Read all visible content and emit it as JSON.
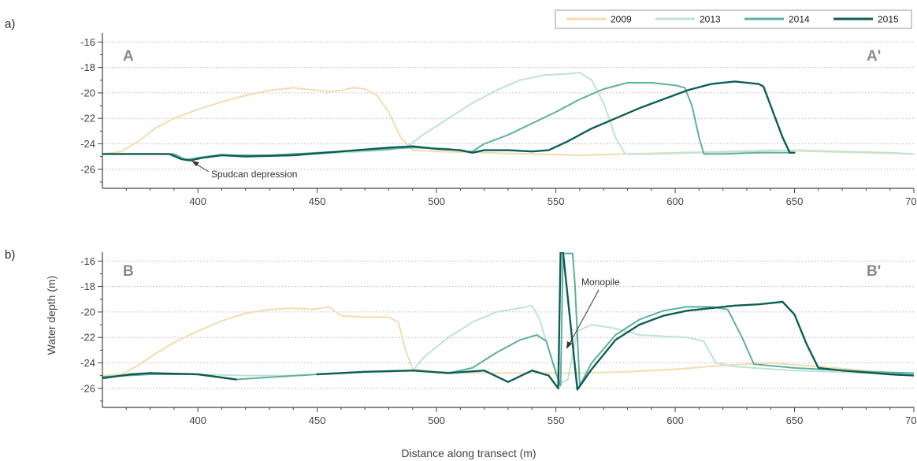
{
  "figure": {
    "ylabel": "Water depth (m)",
    "xlabel": "Distance along transect (m)"
  },
  "legend": [
    {
      "name": "2009",
      "color": "#f3dcb0"
    },
    {
      "name": "2013",
      "color": "#bfe3d6"
    },
    {
      "name": "2014",
      "color": "#5fafa2"
    },
    {
      "name": "2015",
      "color": "#0d5f56"
    }
  ],
  "chart_data": [
    {
      "type": "line",
      "panel_label": "a)",
      "start_label": "A",
      "end_label": "A'",
      "xlim": [
        360,
        700
      ],
      "ylim": [
        -27.5,
        -15.3
      ],
      "xticks": [
        400,
        450,
        500,
        550,
        600,
        650,
        700
      ],
      "yticks": [
        -16,
        -18,
        -20,
        -22,
        -24,
        -26
      ],
      "grid": "horizontal dotted",
      "legend_position": "top-right",
      "annotations": [
        {
          "text": "Spudcan depression",
          "x": 395,
          "y": -25.3
        }
      ],
      "series": [
        {
          "name": "2009",
          "color": "#f3dcb0",
          "points": [
            [
              360,
              -24.8
            ],
            [
              368,
              -24.6
            ],
            [
              375,
              -23.8
            ],
            [
              382,
              -22.8
            ],
            [
              390,
              -22.0
            ],
            [
              400,
              -21.3
            ],
            [
              410,
              -20.7
            ],
            [
              420,
              -20.2
            ],
            [
              430,
              -19.8
            ],
            [
              440,
              -19.6
            ],
            [
              450,
              -19.8
            ],
            [
              455,
              -19.9
            ],
            [
              460,
              -19.8
            ],
            [
              465,
              -19.6
            ],
            [
              470,
              -19.7
            ],
            [
              475,
              -20.2
            ],
            [
              480,
              -21.5
            ],
            [
              485,
              -23.5
            ],
            [
              490,
              -24.5
            ],
            [
              500,
              -24.6
            ],
            [
              520,
              -24.7
            ],
            [
              540,
              -24.8
            ],
            [
              560,
              -24.9
            ],
            [
              580,
              -24.8
            ],
            [
              600,
              -24.7
            ],
            [
              620,
              -24.6
            ],
            [
              640,
              -24.5
            ],
            [
              660,
              -24.6
            ],
            [
              680,
              -24.7
            ],
            [
              700,
              -24.8
            ]
          ]
        },
        {
          "name": "2013",
          "color": "#bfe3d6",
          "points": [
            [
              360,
              -24.8
            ],
            [
              390,
              -24.8
            ],
            [
              395,
              -25.2
            ],
            [
              400,
              -25.1
            ],
            [
              410,
              -24.8
            ],
            [
              420,
              -25.0
            ],
            [
              440,
              -24.9
            ],
            [
              460,
              -24.7
            ],
            [
              480,
              -24.5
            ],
            [
              488,
              -24.2
            ],
            [
              495,
              -23.2
            ],
            [
              505,
              -22.0
            ],
            [
              515,
              -20.8
            ],
            [
              525,
              -19.8
            ],
            [
              535,
              -19.0
            ],
            [
              545,
              -18.6
            ],
            [
              555,
              -18.5
            ],
            [
              560,
              -18.4
            ],
            [
              565,
              -19.0
            ],
            [
              570,
              -20.8
            ],
            [
              575,
              -23.5
            ],
            [
              579,
              -24.8
            ],
            [
              590,
              -24.8
            ],
            [
              610,
              -24.7
            ],
            [
              630,
              -24.6
            ],
            [
              650,
              -24.5
            ],
            [
              670,
              -24.6
            ],
            [
              690,
              -24.7
            ],
            [
              700,
              -24.8
            ]
          ]
        },
        {
          "name": "2014",
          "color": "#5fafa2",
          "points": [
            [
              360,
              -24.8
            ],
            [
              390,
              -24.8
            ],
            [
              395,
              -25.3
            ],
            [
              400,
              -25.1
            ],
            [
              410,
              -24.9
            ],
            [
              430,
              -24.9
            ],
            [
              450,
              -24.7
            ],
            [
              470,
              -24.5
            ],
            [
              490,
              -24.3
            ],
            [
              505,
              -24.4
            ],
            [
              512,
              -24.6
            ],
            [
              515,
              -24.6
            ],
            [
              520,
              -24.0
            ],
            [
              530,
              -23.3
            ],
            [
              540,
              -22.4
            ],
            [
              550,
              -21.5
            ],
            [
              560,
              -20.5
            ],
            [
              570,
              -19.7
            ],
            [
              580,
              -19.2
            ],
            [
              590,
              -19.2
            ],
            [
              600,
              -19.4
            ],
            [
              604,
              -19.6
            ],
            [
              607,
              -21.0
            ],
            [
              610,
              -23.5
            ],
            [
              612,
              -24.8
            ],
            [
              620,
              -24.8
            ],
            [
              635,
              -24.7
            ],
            [
              650,
              -24.7
            ]
          ]
        },
        {
          "name": "2015",
          "color": "#0d5f56",
          "points": [
            [
              360,
              -24.8
            ],
            [
              388,
              -24.8
            ],
            [
              393,
              -25.2
            ],
            [
              397,
              -25.3
            ],
            [
              402,
              -25.1
            ],
            [
              410,
              -24.9
            ],
            [
              420,
              -25.0
            ],
            [
              440,
              -24.9
            ],
            [
              460,
              -24.6
            ],
            [
              480,
              -24.3
            ],
            [
              490,
              -24.2
            ],
            [
              500,
              -24.4
            ],
            [
              510,
              -24.5
            ],
            [
              515,
              -24.7
            ],
            [
              520,
              -24.5
            ],
            [
              530,
              -24.5
            ],
            [
              540,
              -24.6
            ],
            [
              547,
              -24.5
            ],
            [
              555,
              -23.8
            ],
            [
              565,
              -22.8
            ],
            [
              575,
              -22.0
            ],
            [
              585,
              -21.2
            ],
            [
              595,
              -20.5
            ],
            [
              605,
              -19.8
            ],
            [
              615,
              -19.3
            ],
            [
              625,
              -19.1
            ],
            [
              635,
              -19.3
            ],
            [
              637,
              -19.5
            ],
            [
              640,
              -21.0
            ],
            [
              645,
              -23.5
            ],
            [
              648,
              -24.7
            ],
            [
              650,
              -24.7
            ]
          ]
        }
      ]
    },
    {
      "type": "line",
      "panel_label": "b)",
      "start_label": "B",
      "end_label": "B'",
      "xlim": [
        360,
        700
      ],
      "ylim": [
        -27.5,
        -15.3
      ],
      "xticks": [
        400,
        450,
        500,
        550,
        600,
        650,
        700
      ],
      "yticks": [
        -16,
        -18,
        -20,
        -22,
        -24,
        -26
      ],
      "grid": "horizontal dotted",
      "annotations": [
        {
          "text": "Monopile",
          "x": 559,
          "y": -23.0
        }
      ],
      "series": [
        {
          "name": "2009",
          "color": "#f3dcb0",
          "points": [
            [
              360,
              -25.0
            ],
            [
              368,
              -24.9
            ],
            [
              375,
              -24.2
            ],
            [
              382,
              -23.3
            ],
            [
              390,
              -22.4
            ],
            [
              400,
              -21.5
            ],
            [
              410,
              -20.7
            ],
            [
              420,
              -20.1
            ],
            [
              430,
              -19.8
            ],
            [
              440,
              -19.7
            ],
            [
              448,
              -19.8
            ],
            [
              455,
              -19.6
            ],
            [
              460,
              -20.3
            ],
            [
              470,
              -20.4
            ],
            [
              480,
              -20.4
            ],
            [
              484,
              -20.8
            ],
            [
              487,
              -23.0
            ],
            [
              490,
              -24.5
            ],
            [
              500,
              -24.7
            ],
            [
              520,
              -24.8
            ],
            [
              540,
              -24.8
            ],
            [
              560,
              -24.8
            ],
            [
              580,
              -24.7
            ],
            [
              600,
              -24.5
            ],
            [
              620,
              -24.2
            ],
            [
              640,
              -24.0
            ],
            [
              660,
              -24.3
            ],
            [
              680,
              -24.6
            ],
            [
              700,
              -24.9
            ]
          ]
        },
        {
          "name": "2013",
          "color": "#bfe3d6",
          "points": [
            [
              360,
              -25.1
            ],
            [
              380,
              -24.9
            ],
            [
              400,
              -24.9
            ],
            [
              420,
              -25.0
            ],
            [
              440,
              -25.0
            ],
            [
              460,
              -24.8
            ],
            [
              480,
              -24.7
            ],
            [
              490,
              -24.6
            ],
            [
              495,
              -23.5
            ],
            [
              505,
              -22.0
            ],
            [
              515,
              -20.8
            ],
            [
              525,
              -20.0
            ],
            [
              535,
              -19.7
            ],
            [
              540,
              -19.5
            ],
            [
              543,
              -20.5
            ],
            [
              548,
              -23.5
            ],
            [
              552,
              -25.6
            ],
            [
              555,
              -25.3
            ],
            [
              559,
              -21.5
            ],
            [
              565,
              -21.0
            ],
            [
              575,
              -21.3
            ],
            [
              585,
              -21.8
            ],
            [
              595,
              -21.9
            ],
            [
              605,
              -22.0
            ],
            [
              612,
              -22.3
            ],
            [
              617,
              -24.0
            ],
            [
              625,
              -24.3
            ],
            [
              650,
              -24.6
            ],
            [
              680,
              -24.8
            ],
            [
              700,
              -24.9
            ]
          ]
        },
        {
          "name": "2014",
          "color": "#5fafa2",
          "points": [
            [
              360,
              -25.1
            ],
            [
              380,
              -24.9
            ],
            [
              400,
              -24.9
            ],
            [
              416,
              -25.3
            ],
            [
              450,
              -24.9
            ],
            [
              470,
              -24.7
            ],
            [
              490,
              -24.6
            ],
            [
              505,
              -24.8
            ],
            [
              515,
              -24.4
            ],
            [
              525,
              -23.2
            ],
            [
              535,
              -22.2
            ],
            [
              542,
              -21.8
            ],
            [
              546,
              -22.3
            ],
            [
              550,
              -24.8
            ],
            [
              552,
              -25.8
            ],
            [
              553,
              -15.4
            ],
            [
              557,
              -15.4
            ],
            [
              558,
              -17.8
            ],
            [
              560,
              -25.8
            ],
            [
              565,
              -24.0
            ],
            [
              575,
              -21.8
            ],
            [
              585,
              -20.6
            ],
            [
              595,
              -19.9
            ],
            [
              605,
              -19.6
            ],
            [
              615,
              -19.6
            ],
            [
              622,
              -19.8
            ],
            [
              628,
              -22.0
            ],
            [
              633,
              -24.1
            ],
            [
              650,
              -24.4
            ],
            [
              680,
              -24.7
            ],
            [
              700,
              -24.8
            ]
          ]
        },
        {
          "name": "2015",
          "color": "#0d5f56",
          "points": [
            [
              360,
              -25.2
            ],
            [
              372,
              -24.9
            ],
            [
              380,
              -24.8
            ],
            [
              400,
              -24.9
            ],
            [
              416,
              -25.3
            ]
          ]
        },
        {
          "name": "2015",
          "color": "#0d5f56",
          "points": [
            [
              450,
              -24.9
            ],
            [
              470,
              -24.7
            ],
            [
              490,
              -24.6
            ],
            [
              505,
              -24.8
            ],
            [
              520,
              -24.6
            ],
            [
              530,
              -25.5
            ],
            [
              540,
              -24.6
            ],
            [
              547,
              -25.0
            ],
            [
              551,
              -26.0
            ],
            [
              552,
              -15.3
            ],
            [
              553,
              -15.3
            ],
            [
              559,
              -26.1
            ],
            [
              565,
              -24.5
            ],
            [
              575,
              -22.2
            ],
            [
              585,
              -21.0
            ],
            [
              595,
              -20.3
            ],
            [
              605,
              -19.9
            ],
            [
              615,
              -19.7
            ],
            [
              625,
              -19.5
            ],
            [
              635,
              -19.4
            ],
            [
              645,
              -19.2
            ],
            [
              650,
              -20.2
            ],
            [
              655,
              -22.5
            ],
            [
              660,
              -24.4
            ],
            [
              670,
              -24.6
            ],
            [
              690,
              -24.9
            ],
            [
              700,
              -25.0
            ]
          ]
        }
      ]
    }
  ]
}
